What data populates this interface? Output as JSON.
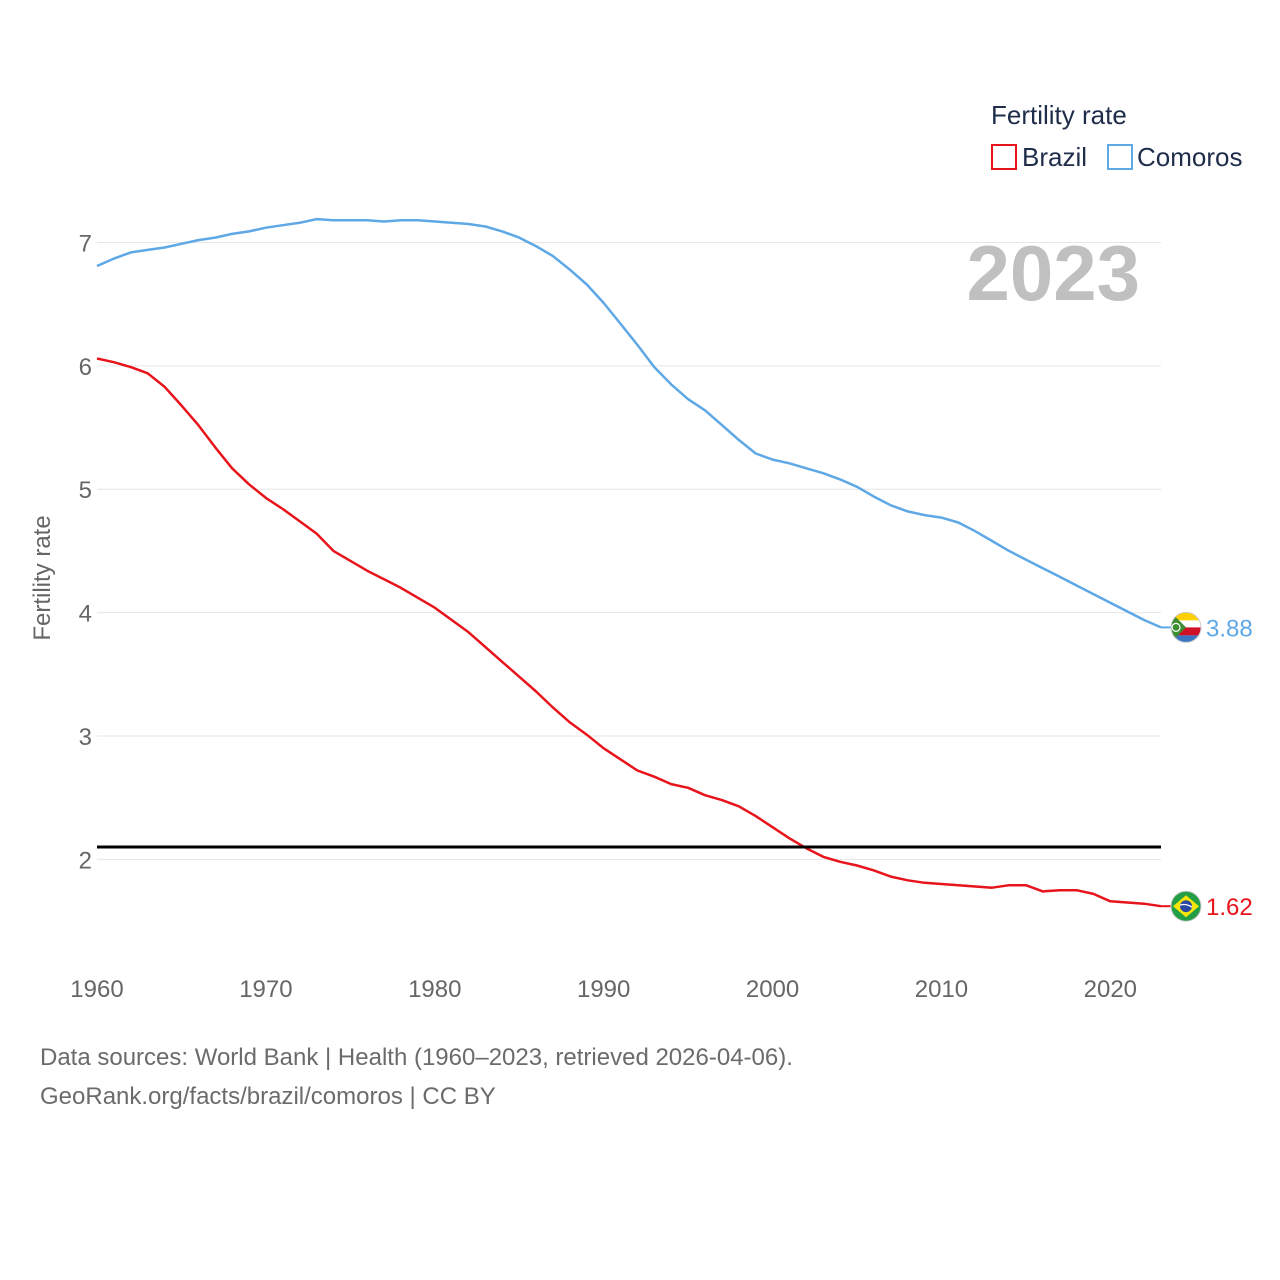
{
  "chart_data": {
    "type": "line",
    "ylabel": "Fertility rate",
    "xlabel": "",
    "xlim": [
      1960,
      2023
    ],
    "ylim": [
      1.2,
      7.75
    ],
    "xticks": [
      1960,
      1970,
      1980,
      1990,
      2000,
      2010,
      2020
    ],
    "yticks": [
      2,
      3,
      4,
      5,
      6,
      7
    ],
    "reference_line": 2.1,
    "year_label": "2023",
    "legend": {
      "title": "Fertility rate",
      "position": "top-right"
    },
    "x": [
      1960,
      1961,
      1962,
      1963,
      1964,
      1965,
      1966,
      1967,
      1968,
      1969,
      1970,
      1971,
      1972,
      1973,
      1974,
      1975,
      1976,
      1977,
      1978,
      1979,
      1980,
      1981,
      1982,
      1983,
      1984,
      1985,
      1986,
      1987,
      1988,
      1989,
      1990,
      1991,
      1992,
      1993,
      1994,
      1995,
      1996,
      1997,
      1998,
      1999,
      2000,
      2001,
      2002,
      2003,
      2004,
      2005,
      2006,
      2007,
      2008,
      2009,
      2010,
      2011,
      2012,
      2013,
      2014,
      2015,
      2016,
      2017,
      2018,
      2019,
      2020,
      2021,
      2022,
      2023
    ],
    "series": [
      {
        "name": "Brazil",
        "color": "#e8141c",
        "flag": "brazil-flag",
        "end_label": "1.62",
        "values": [
          6.06,
          6.03,
          5.99,
          5.94,
          5.83,
          5.68,
          5.52,
          5.34,
          5.17,
          5.04,
          4.93,
          4.84,
          4.74,
          4.64,
          4.5,
          4.42,
          4.34,
          4.27,
          4.2,
          4.12,
          4.04,
          3.94,
          3.84,
          3.72,
          3.6,
          3.48,
          3.36,
          3.23,
          3.11,
          3.01,
          2.9,
          2.81,
          2.72,
          2.67,
          2.61,
          2.58,
          2.52,
          2.48,
          2.43,
          2.35,
          2.26,
          2.17,
          2.09,
          2.02,
          1.98,
          1.95,
          1.91,
          1.86,
          1.83,
          1.81,
          1.8,
          1.79,
          1.78,
          1.77,
          1.79,
          1.79,
          1.74,
          1.75,
          1.75,
          1.72,
          1.66,
          1.65,
          1.64,
          1.62
        ]
      },
      {
        "name": "Comoros",
        "color": "#5ea8e6",
        "flag": "comoros-flag",
        "end_label": "3.88",
        "values": [
          6.81,
          6.87,
          6.92,
          6.94,
          6.96,
          6.99,
          7.02,
          7.04,
          7.07,
          7.09,
          7.12,
          7.14,
          7.16,
          7.19,
          7.18,
          7.18,
          7.18,
          7.17,
          7.18,
          7.18,
          7.17,
          7.16,
          7.15,
          7.13,
          7.09,
          7.04,
          6.97,
          6.89,
          6.78,
          6.66,
          6.51,
          6.34,
          6.17,
          5.99,
          5.85,
          5.73,
          5.64,
          5.52,
          5.4,
          5.29,
          5.24,
          5.21,
          5.17,
          5.13,
          5.08,
          5.02,
          4.94,
          4.87,
          4.82,
          4.79,
          4.77,
          4.73,
          4.66,
          4.58,
          4.5,
          4.43,
          4.36,
          4.29,
          4.22,
          4.15,
          4.08,
          4.01,
          3.94,
          3.88
        ]
      }
    ]
  },
  "footer": {
    "source": "Data sources: World Bank | Health (1960–2023, retrieved 2026-04-06).",
    "credit": "GeoRank.org/facts/brazil/comoros | CC BY"
  }
}
